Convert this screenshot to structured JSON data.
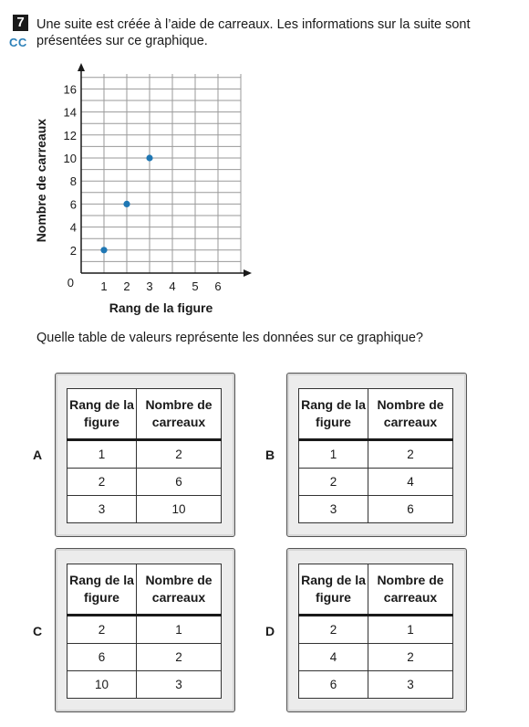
{
  "question": {
    "number": "7",
    "code": "CC",
    "text": "Une suite est créée à l’aide de carreaux. Les informations sur la suite sont présentées sur ce graphique.",
    "prompt": "Quelle table de valeurs représente les données sur ce graphique?"
  },
  "chart_data": {
    "type": "scatter",
    "xlabel": "Rang de la figure",
    "ylabel": "Nombre de carreaux",
    "origin_label": "0",
    "x_ticks": [
      "1",
      "2",
      "3",
      "4",
      "5",
      "6"
    ],
    "y_ticks": [
      "2",
      "4",
      "6",
      "8",
      "10",
      "12",
      "14",
      "16"
    ],
    "xlim": [
      0,
      7
    ],
    "ylim": [
      0,
      18
    ],
    "grid": true,
    "point_color": "#1f77b4",
    "points": [
      {
        "x": 1,
        "y": 2
      },
      {
        "x": 2,
        "y": 6
      },
      {
        "x": 3,
        "y": 10
      }
    ]
  },
  "options": [
    {
      "letter": "A",
      "header": [
        "Rang de la figure",
        "Nombre de carreaux"
      ],
      "rows": [
        [
          "1",
          "2"
        ],
        [
          "2",
          "6"
        ],
        [
          "3",
          "10"
        ]
      ]
    },
    {
      "letter": "B",
      "header": [
        "Rang de la figure",
        "Nombre de carreaux"
      ],
      "rows": [
        [
          "1",
          "2"
        ],
        [
          "2",
          "4"
        ],
        [
          "3",
          "6"
        ]
      ]
    },
    {
      "letter": "C",
      "header": [
        "Rang de la figure",
        "Nombre de carreaux"
      ],
      "rows": [
        [
          "2",
          "1"
        ],
        [
          "6",
          "2"
        ],
        [
          "10",
          "3"
        ]
      ]
    },
    {
      "letter": "D",
      "header": [
        "Rang de la figure",
        "Nombre de carreaux"
      ],
      "rows": [
        [
          "2",
          "1"
        ],
        [
          "4",
          "2"
        ],
        [
          "6",
          "3"
        ]
      ]
    }
  ]
}
